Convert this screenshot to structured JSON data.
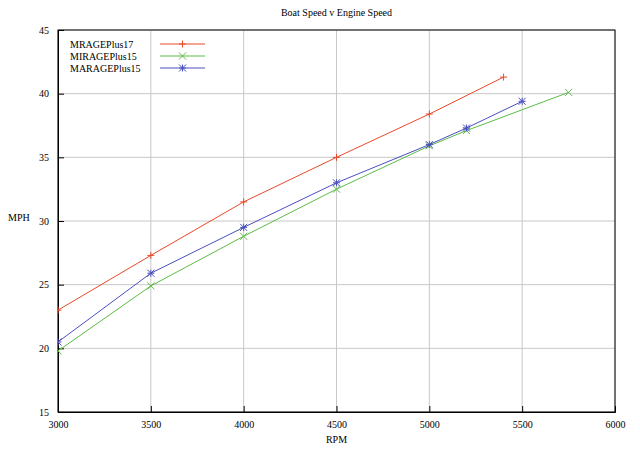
{
  "chart_data": {
    "type": "line",
    "title": "Boat Speed v Engine Speed",
    "x_label": "RPM",
    "y_label": "MPH",
    "xlim": [
      3000,
      6000
    ],
    "xticks": [
      3000,
      3500,
      4000,
      4500,
      5000,
      5500,
      6000
    ],
    "ylim": [
      15,
      45
    ],
    "yticks": [
      15,
      20,
      25,
      30,
      35,
      40,
      45
    ],
    "grid": true,
    "legend": "top-left",
    "series": [
      {
        "name": "MRAGEPlus17",
        "color": "#e8492a",
        "marker": "plus",
        "line_style": "solid",
        "x": [
          3000,
          3500,
          4000,
          4500,
          5000,
          5400
        ],
        "values": [
          23.0,
          27.3,
          31.5,
          35.0,
          38.4,
          41.3
        ]
      },
      {
        "name": "MIRAGEPlus15",
        "color": "#5dbb46",
        "marker": "cross",
        "line_style": "solid",
        "x": [
          3000,
          3500,
          4000,
          4500,
          5000,
          5200,
          5750
        ],
        "values": [
          19.8,
          24.9,
          28.8,
          32.5,
          35.9,
          37.1,
          40.1
        ]
      },
      {
        "name": "MARAGEPlus15",
        "color": "#4a4fbf",
        "marker": "star",
        "line_style": "solid",
        "x": [
          3000,
          3500,
          4000,
          4500,
          5000,
          5200,
          5500
        ],
        "values": [
          20.5,
          25.9,
          29.5,
          33.0,
          36.0,
          37.3,
          39.4
        ]
      }
    ]
  }
}
